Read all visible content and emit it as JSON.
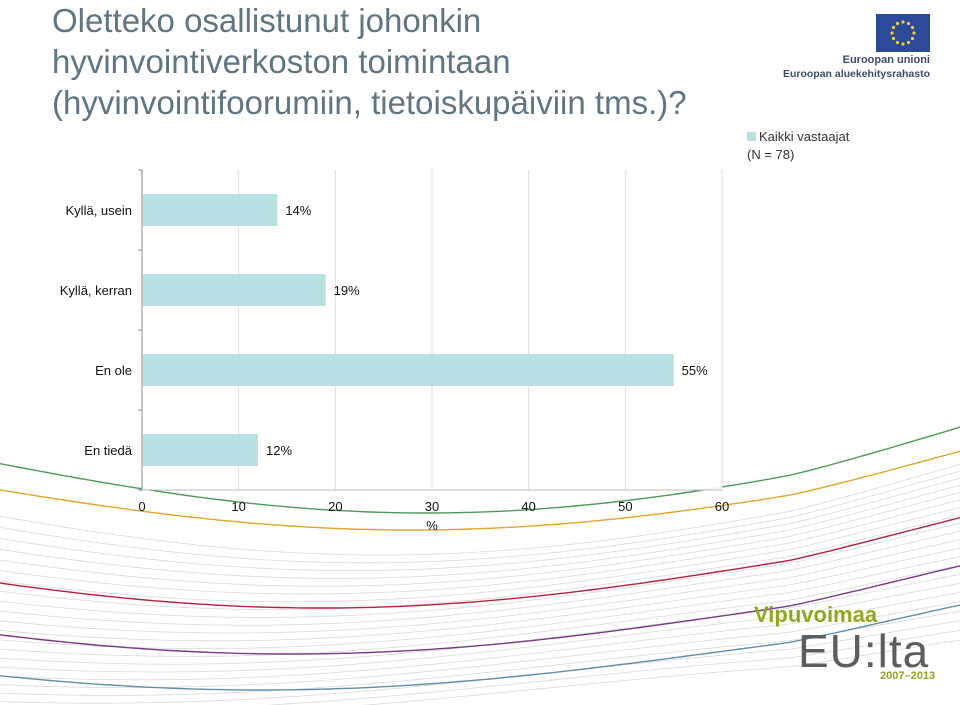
{
  "title_lines": [
    "Oletteko osallistunut johonkin",
    "hyvinvointiverkoston toimintaan",
    "(hyvinvointifoorumiin, tietoiskupäiviin tms.)?"
  ],
  "legend": {
    "label": "Kaikki vastaajat",
    "sublabel": "(N = 78)"
  },
  "logos": {
    "eu_line1": "Euroopan unioni",
    "eu_line2": "Euroopan aluekehitysrahasto",
    "vipu_line1": "Vipuvoimaa",
    "vipu_line2": "EU:lta",
    "vipu_years": "2007–2013"
  },
  "colors": {
    "bar": "#b8dfe1",
    "title": "#5f7583",
    "grid": "#dddddd"
  },
  "chart_data": {
    "type": "bar",
    "orientation": "horizontal",
    "categories": [
      "Kyllä, usein",
      "Kyllä, kerran",
      "En ole",
      "En tiedä"
    ],
    "series": [
      {
        "name": "Kaikki vastaajat (N = 78)",
        "values": [
          14,
          19,
          55,
          12
        ]
      }
    ],
    "data_labels": [
      "14%",
      "19%",
      "55%",
      "12%"
    ],
    "xlabel": "%",
    "xlim": [
      0,
      60
    ],
    "xticks": [
      0,
      10,
      20,
      30,
      40,
      50,
      60
    ],
    "grid": true,
    "legend_position": "top-right"
  }
}
